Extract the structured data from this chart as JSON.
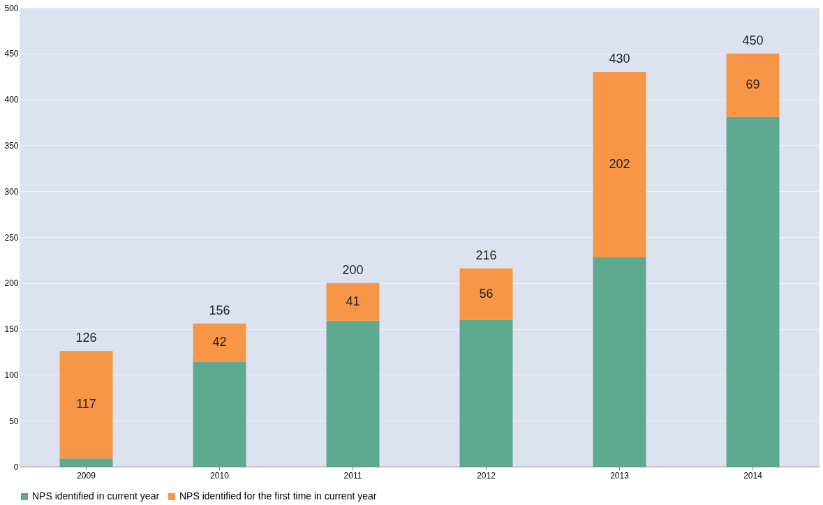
{
  "chart_data": {
    "type": "bar",
    "stacked": true,
    "categories": [
      "2009",
      "2010",
      "2011",
      "2012",
      "2013",
      "2014"
    ],
    "series": [
      {
        "name": "NPS identified in current year",
        "color": "#5ea98f",
        "values": [
          9,
          114,
          159,
          160,
          228,
          381
        ]
      },
      {
        "name": "NPS identified for the first time in current year",
        "color": "#f79646",
        "values": [
          117,
          42,
          41,
          56,
          202,
          69
        ],
        "value_labels": [
          "117",
          "42",
          "41",
          "56",
          "202",
          "69"
        ]
      }
    ],
    "totals": [
      "126",
      "156",
      "200",
      "216",
      "430",
      "450"
    ],
    "ylim": [
      0,
      500
    ],
    "yticks": [
      0,
      50,
      100,
      150,
      200,
      250,
      300,
      350,
      400,
      450,
      500
    ],
    "grid": "y",
    "legend": "bottom"
  }
}
